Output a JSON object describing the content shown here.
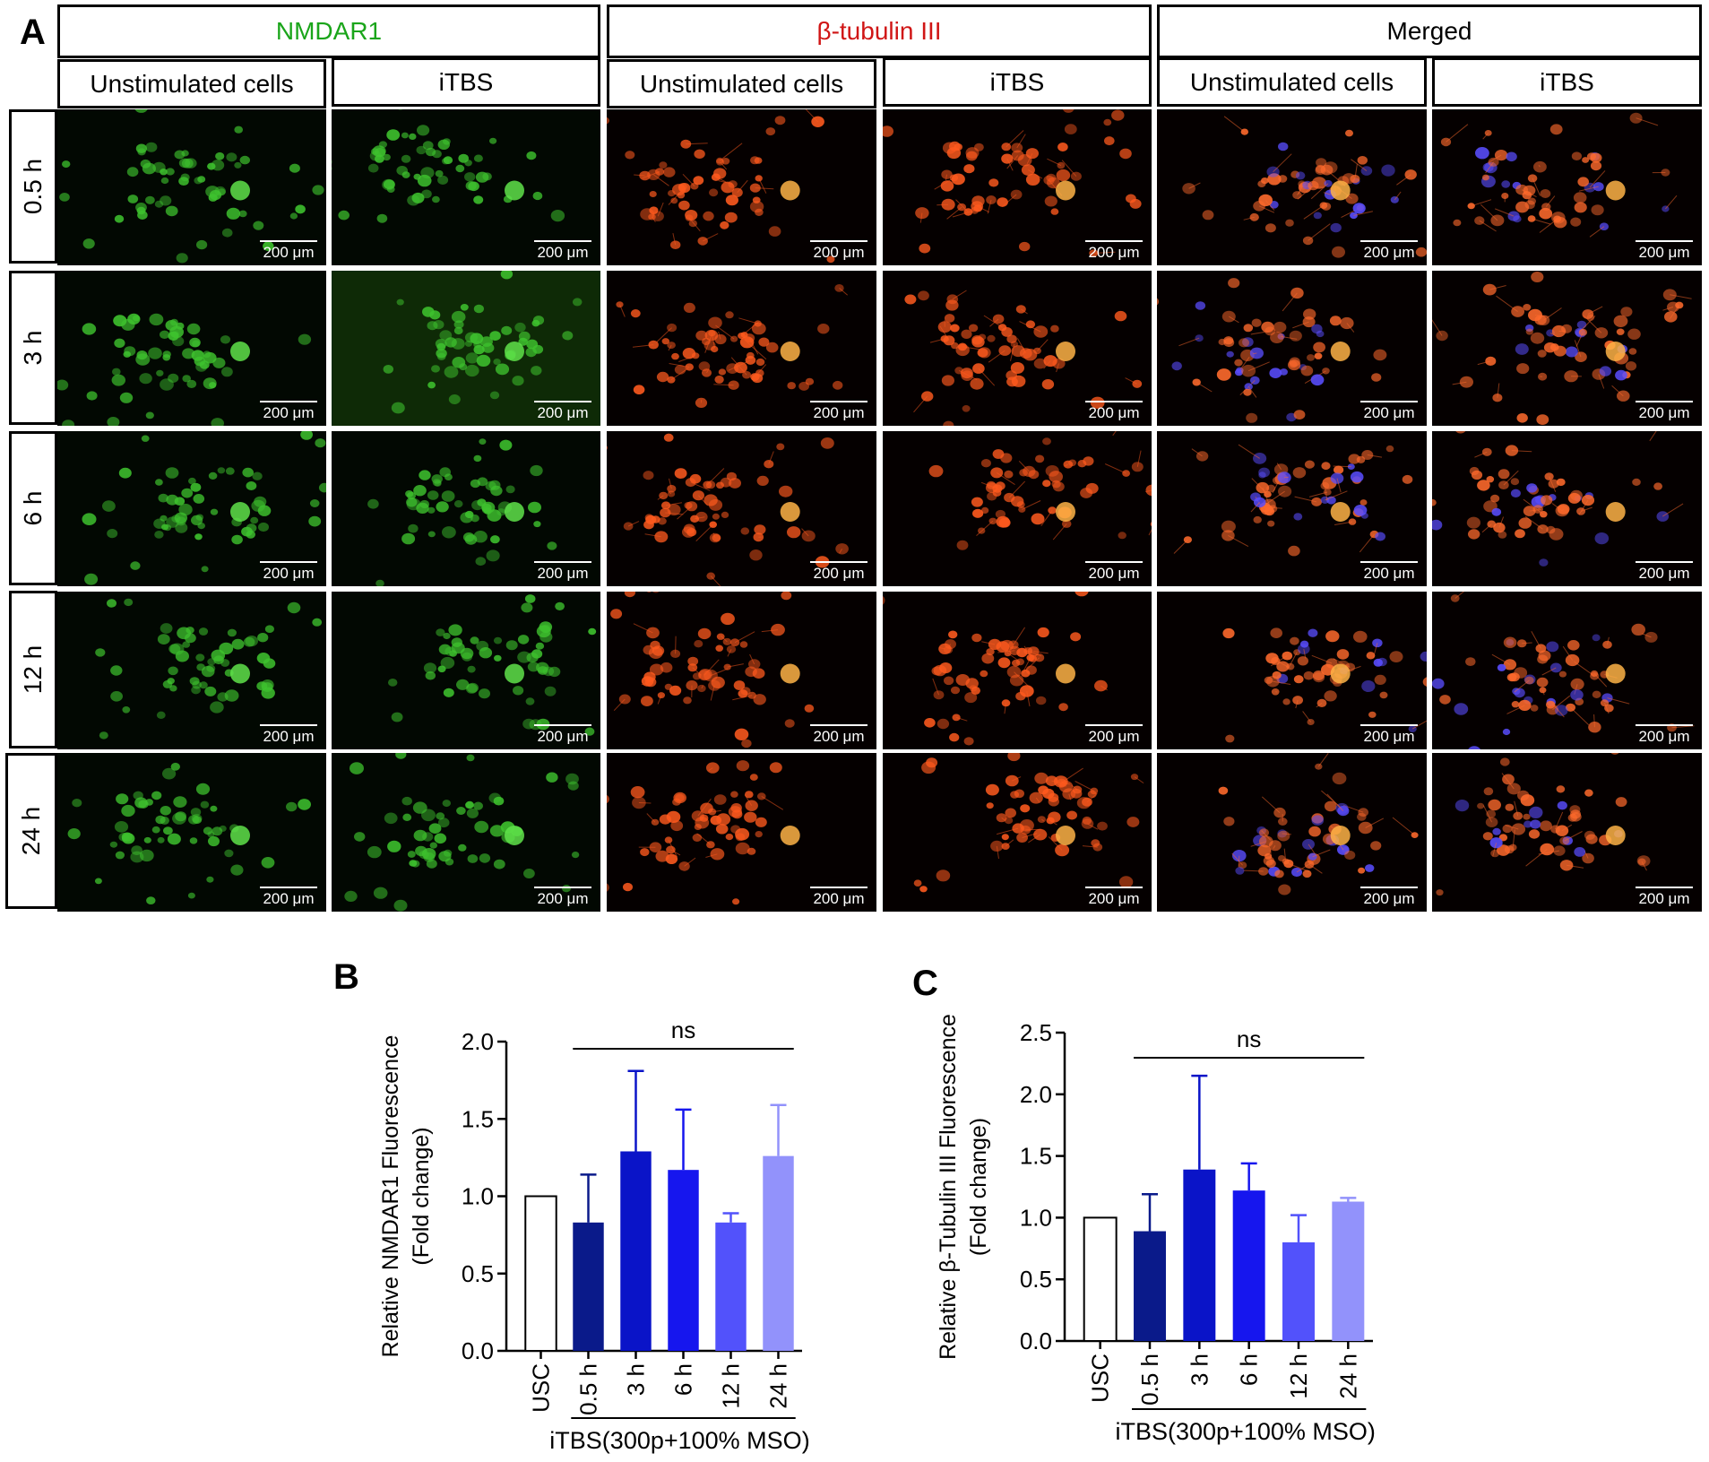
{
  "panels": {
    "a": "A",
    "b": "B",
    "c": "C"
  },
  "columns": [
    {
      "title": "NMDAR1",
      "title_color": "#1aa51a",
      "sub": [
        "Unstimulated cells",
        "iTBS"
      ]
    },
    {
      "title": "β-tubulin III",
      "title_color": "#d01515",
      "sub": [
        "Unstimulated cells",
        "iTBS"
      ]
    },
    {
      "title": "Merged",
      "title_color": "#000000",
      "sub": [
        "Unstimulated cells",
        "iTBS"
      ]
    }
  ],
  "rows": [
    "0.5 h",
    "3 h",
    "6 h",
    "12 h",
    "24 h"
  ],
  "scale_bar_label": "200 μm",
  "stain_colors": {
    "nmdar1": "#3ec22e",
    "tubulin": "#ff5a1e",
    "merged": "#ff6a2c",
    "dapi": "#5a4dff"
  },
  "chart_data": [
    {
      "type": "bar",
      "panel": "B",
      "ylabel": [
        "Relative NMDAR1 Fluorescence",
        "(Fold change)"
      ],
      "categories": [
        "USC",
        "0.5 h",
        "3 h",
        "6 h",
        "12 h",
        "24 h"
      ],
      "values": [
        1.0,
        0.83,
        1.29,
        1.17,
        0.83,
        1.26
      ],
      "errors": [
        0,
        0.31,
        0.52,
        0.39,
        0.06,
        0.33
      ],
      "colors": [
        "#ffffff",
        "#0a1a8a",
        "#0a14c8",
        "#1616ee",
        "#5252fb",
        "#9292fb"
      ],
      "yticks": [
        "0.0",
        "0.5",
        "1.0",
        "1.5",
        "2.0"
      ],
      "ylim": [
        0,
        2.0
      ],
      "significance": "ns",
      "xgroup_label": "iTBS(300p+100% MSO)"
    },
    {
      "type": "bar",
      "panel": "C",
      "ylabel": [
        "Relative β-Tubulin III  Fluorescence",
        "(Fold change)"
      ],
      "categories": [
        "USC",
        "0.5 h",
        "3 h",
        "6 h",
        "12 h",
        "24 h"
      ],
      "values": [
        1.0,
        0.89,
        1.39,
        1.22,
        0.8,
        1.13
      ],
      "errors": [
        0,
        0.3,
        0.76,
        0.22,
        0.22,
        0.03
      ],
      "colors": [
        "#ffffff",
        "#0a1a8a",
        "#0a14c8",
        "#1616ee",
        "#5252fb",
        "#9292fb"
      ],
      "yticks": [
        "0.0",
        "0.5",
        "1.0",
        "1.5",
        "2.0",
        "2.5"
      ],
      "ylim": [
        0,
        2.5
      ],
      "significance": "ns",
      "xgroup_label": "iTBS(300p+100% MSO)"
    }
  ]
}
